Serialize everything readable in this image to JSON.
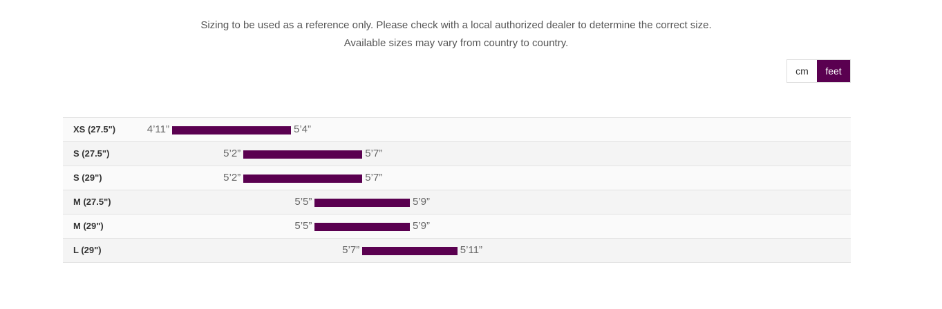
{
  "notice": {
    "line1": "Sizing to be used as a reference only. Please check with a local authorized dealer to determine the correct size.",
    "line2": "Available sizes may vary from country to country."
  },
  "units": {
    "cm_label": "cm",
    "feet_label": "feet",
    "selected": "feet"
  },
  "colors": {
    "accent": "#5a0050"
  },
  "sizes": [
    {
      "label": "XS (27.5\")",
      "min": "4’11”",
      "max": "5’4”",
      "min_in": 59,
      "max_in": 64
    },
    {
      "label": "S (27.5\")",
      "min": "5’2”",
      "max": "5’7”",
      "min_in": 62,
      "max_in": 67
    },
    {
      "label": "S (29\")",
      "min": "5’2”",
      "max": "5’7”",
      "min_in": 62,
      "max_in": 67
    },
    {
      "label": "M (27.5\")",
      "min": "5’5”",
      "max": "5’9”",
      "min_in": 65,
      "max_in": 69
    },
    {
      "label": "M (29\")",
      "min": "5’5”",
      "max": "5’9”",
      "min_in": 65,
      "max_in": 69
    },
    {
      "label": "L (29\")",
      "min": "5’7”",
      "max": "5’11”",
      "min_in": 67,
      "max_in": 71
    }
  ]
}
